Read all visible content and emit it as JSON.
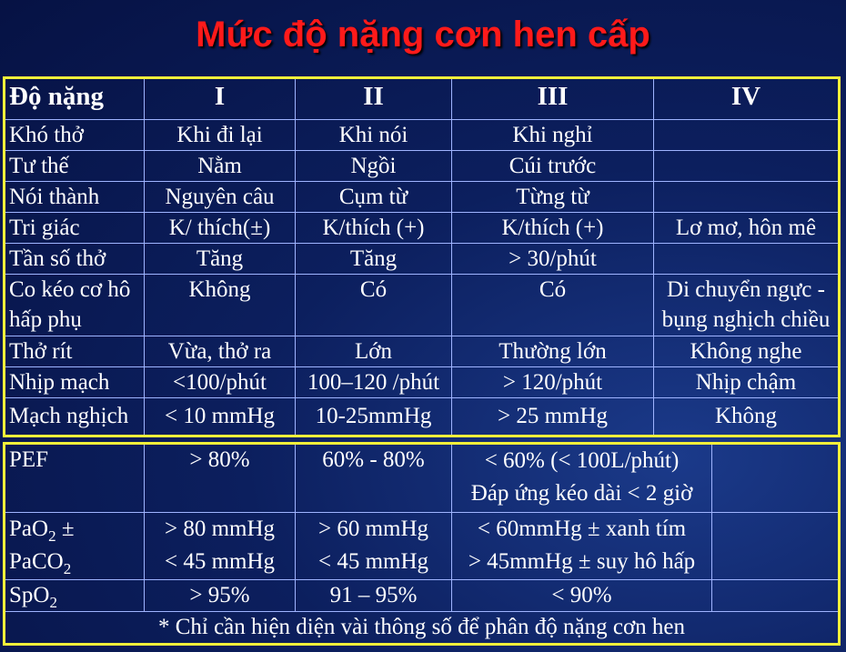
{
  "title": "Mức độ nặng cơn hen cấp",
  "table1": {
    "header": [
      "Độ nặng",
      "I",
      "II",
      "III",
      "IV"
    ],
    "rows": [
      [
        "Khó thở",
        "Khi đi lại",
        "Khi nói",
        "Khi nghỉ",
        ""
      ],
      [
        "Tư thế",
        "Nằm",
        "Ngồi",
        "Cúi trước",
        ""
      ],
      [
        "Nói thành",
        "Nguyên câu",
        "Cụm từ",
        "Từng từ",
        ""
      ],
      [
        "Tri giác",
        "K/ thích(±)",
        "K/thích (+)",
        "K/thích (+)",
        "Lơ mơ, hôn mê"
      ],
      [
        "Tần số thở",
        "Tăng",
        "Tăng",
        "> 30/phút",
        ""
      ],
      [
        "Co kéo cơ hô hấp phụ",
        "Không",
        "Có",
        "Có",
        "Di chuyển ngực - bụng nghịch chiều"
      ],
      [
        "Thở rít",
        "Vừa,  thở ra",
        "Lớn",
        "Thường lớn",
        "Không nghe"
      ],
      [
        "Nhịp mạch",
        "<100/phút",
        "100–120 /phút",
        "> 120/phút",
        "Nhịp chậm"
      ],
      [
        "Mạch nghịch",
        "< 10 mmHg",
        "10-25mmHg",
        "> 25 mmHg",
        "Không"
      ]
    ]
  },
  "table2": {
    "pef": {
      "label": "PEF",
      "c1": "> 80%",
      "c2": "60% - 80%",
      "c3a": "< 60% (< 100L/phút)",
      "c3b": "Đáp ứng kéo dài < 2 giờ",
      "c4": ""
    },
    "gas": {
      "label_pao2_base": "PaO",
      "label_pao2_sub": "2",
      "label_pao2_suffix": " ±",
      "label_paco2_base": "PaCO",
      "label_paco2_sub": "2",
      "c1a": "> 80 mmHg",
      "c1b": "< 45 mmHg",
      "c2a": "> 60 mmHg",
      "c2b": "< 45 mmHg",
      "c3a": "< 60mmHg ± xanh tím",
      "c3b": "> 45mmHg ± suy hô hấp",
      "c4": ""
    },
    "spo2": {
      "label_base": "SpO",
      "label_sub": "2",
      "c1": "> 95%",
      "c2": "91 – 95%",
      "c3": "< 90%",
      "c4": ""
    },
    "footnote": "* Chỉ cần hiện diện vài thông số để phân độ nặng cơn hen"
  },
  "colors": {
    "title": "#ff1a1a",
    "table_border": "#f3ef3a",
    "grid": "#9fb4ff",
    "background": "#0c1f5e",
    "text": "#ffffff"
  }
}
